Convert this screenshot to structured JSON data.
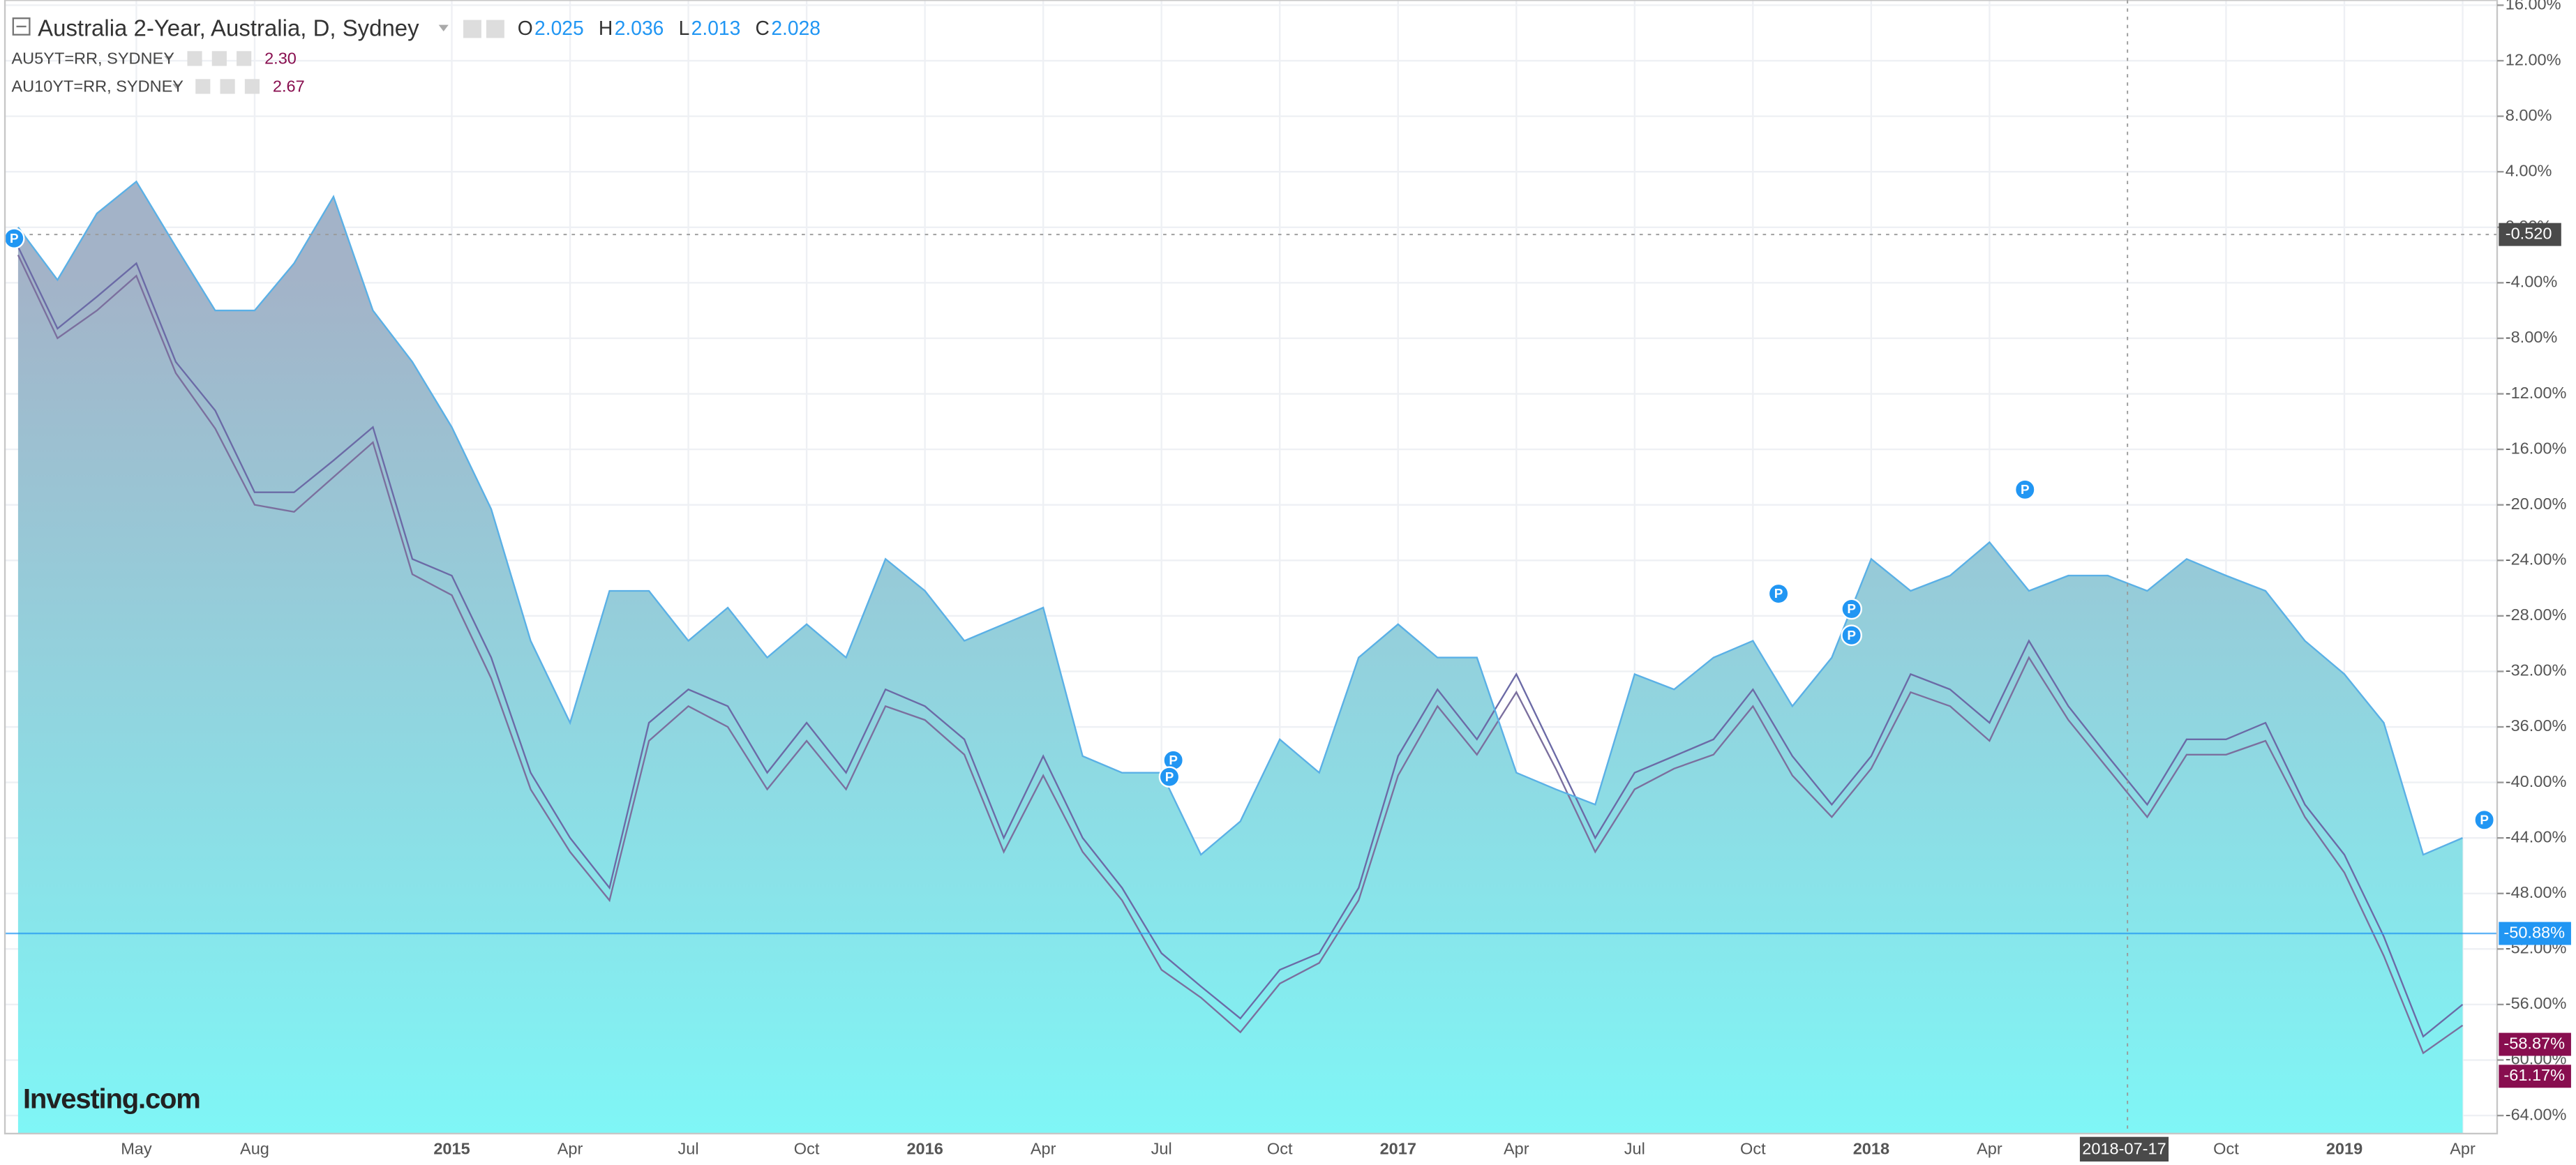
{
  "chart_data": {
    "type": "area",
    "series": [
      {
        "name": "Australia 2-Year, Australia, D, Sydney",
        "color": "#5ab0e6",
        "fill_top": "#a3b3c8",
        "fill_bottom": "#7ff6f6",
        "ohlc": [
          {
            "label": "O",
            "value": "2.025"
          },
          {
            "label": "H",
            "value": "2.036"
          },
          {
            "label": "L",
            "value": "2.013"
          },
          {
            "label": "C",
            "value": "2.028"
          }
        ],
        "values": [
          0,
          -3.8,
          1,
          3.3,
          -1.4,
          -6,
          -6,
          -2.6,
          2.2,
          -6,
          -9.7,
          -14.4,
          -20.3,
          -29.8,
          -35.7,
          -26.2,
          -26.2,
          -29.8,
          -27.4,
          -31,
          -28.6,
          -31,
          -23.9,
          -26.2,
          -29.8,
          -28.6,
          -27.4,
          -38.1,
          -39.3,
          -39.3,
          -45.2,
          -42.8,
          -36.9,
          -39.3,
          -31,
          -28.6,
          -31,
          -31,
          -39.3,
          -40.5,
          -41.6,
          -32.2,
          -33.3,
          -31,
          -29.8,
          -34.5,
          -31,
          -23.9,
          -26.2,
          -25.1,
          -22.7,
          -26.2,
          -25.1,
          -25.1,
          -26.2,
          -23.9,
          -25.1,
          -26.2,
          -29.8,
          -32.2,
          -35.7,
          -45.2,
          -44
        ]
      },
      {
        "name": "AU5YT=RR, SYDNEY",
        "color": "#6b6aa6",
        "legend_value": "2.30",
        "values": [
          -1.4,
          -7.3,
          -5,
          -2.6,
          -9.7,
          -13.2,
          -19.1,
          -19.1,
          -16.8,
          -14.4,
          -23.9,
          -25.1,
          -31,
          -39.3,
          -44,
          -47.6,
          -35.7,
          -33.3,
          -34.5,
          -39.3,
          -35.7,
          -39.3,
          -33.3,
          -34.5,
          -36.9,
          -44,
          -38.1,
          -44,
          -47.6,
          -52.3,
          -54.7,
          -57,
          -53.5,
          -52.3,
          -47.6,
          -38.1,
          -33.3,
          -36.9,
          -32.2,
          -38.1,
          -44,
          -39.3,
          -38.1,
          -36.9,
          -33.3,
          -38.1,
          -41.6,
          -38.1,
          -32.2,
          -33.3,
          -35.7,
          -29.8,
          -34.5,
          -38.1,
          -41.6,
          -36.9,
          -36.9,
          -35.7,
          -41.6,
          -45.2,
          -51.1,
          -58.3,
          -56
        ]
      },
      {
        "name": "AU10YT=RR, SYDNEY",
        "color": "#7b6f9e",
        "legend_value": "2.67",
        "values": [
          -2,
          -8,
          -6,
          -3.5,
          -10.5,
          -14.5,
          -20,
          -20.5,
          -18,
          -15.5,
          -25,
          -26.5,
          -32.5,
          -40.5,
          -45,
          -48.5,
          -37,
          -34.5,
          -36,
          -40.5,
          -37,
          -40.5,
          -34.5,
          -35.5,
          -38,
          -45,
          -39.5,
          -45,
          -48.5,
          -53.5,
          -55.5,
          -58,
          -54.5,
          -53,
          -48.5,
          -39.5,
          -34.5,
          -38,
          -33.5,
          -39,
          -45,
          -40.5,
          -39,
          -38,
          -34.5,
          -39.5,
          -42.5,
          -39,
          -33.5,
          -34.5,
          -37,
          -31,
          -35.5,
          -39,
          -42.5,
          -38,
          -38,
          -37,
          -42.5,
          -46.5,
          -52.5,
          -59.5,
          -57.5
        ]
      }
    ],
    "categories": [
      null,
      null,
      null,
      "May",
      null,
      null,
      "Aug",
      null,
      null,
      null,
      null,
      "2015",
      null,
      null,
      "Apr",
      null,
      null,
      "Jul",
      null,
      null,
      "Oct",
      null,
      null,
      "2016",
      null,
      null,
      "Apr",
      null,
      null,
      "Jul",
      null,
      null,
      "Oct",
      null,
      null,
      "2017",
      null,
      null,
      "Apr",
      null,
      null,
      "Jul",
      null,
      null,
      "Oct",
      null,
      null,
      "2018",
      null,
      null,
      "Apr",
      null,
      null,
      null,
      null,
      null,
      "Oct",
      null,
      null,
      "2019",
      null,
      null,
      "Apr"
    ],
    "ylim": [
      -65.3,
      16.36
    ],
    "yticks": [
      {
        "value": 16,
        "label": "16.00%"
      },
      {
        "value": 12,
        "label": "12.00%"
      },
      {
        "value": 8,
        "label": "8.00%"
      },
      {
        "value": 4,
        "label": "4.00%"
      },
      {
        "value": 0,
        "label": "0.00%"
      },
      {
        "value": -4,
        "label": "-4.00%"
      },
      {
        "value": -8,
        "label": "-8.00%"
      },
      {
        "value": -12,
        "label": "-12.00%"
      },
      {
        "value": -16,
        "label": "-16.00%"
      },
      {
        "value": -20,
        "label": "-20.00%"
      },
      {
        "value": -24,
        "label": "-24.00%"
      },
      {
        "value": -28,
        "label": "-28.00%"
      },
      {
        "value": -32,
        "label": "-32.00%"
      },
      {
        "value": -36,
        "label": "-36.00%"
      },
      {
        "value": -40,
        "label": "-40.00%"
      },
      {
        "value": -44,
        "label": "-44.00%"
      },
      {
        "value": -48,
        "label": "-48.00%"
      },
      {
        "value": -52,
        "label": "-52.00%"
      },
      {
        "value": -56,
        "label": "-56.00%"
      },
      {
        "value": -60,
        "label": "-60.00%"
      },
      {
        "value": -64,
        "label": "-64.00%"
      }
    ],
    "grid": true,
    "price_labels": [
      {
        "value": -50.88,
        "label": "-50.88%",
        "color": "#2196f3",
        "line": true
      },
      {
        "value": -58.87,
        "label": "-58.87%",
        "color": "#880e4f"
      },
      {
        "value": -61.17,
        "label": "-61.17%",
        "color": "#880e4f"
      }
    ],
    "crosshair": {
      "x_label": "2018-07-17",
      "y": {
        "value": -0.52,
        "label": "-0.520"
      }
    },
    "markers": [
      {
        "label": "P",
        "x": -0.1,
        "y": -0.8
      },
      {
        "label": "P",
        "x": 29.3,
        "y": -38.4
      },
      {
        "label": "P",
        "x": 29.2,
        "y": -39.6
      },
      {
        "label": "P",
        "x": 44.65,
        "y": -26.4
      },
      {
        "label": "P",
        "x": 46.5,
        "y": -27.5
      },
      {
        "label": "P",
        "x": 46.5,
        "y": -29.4
      },
      {
        "label": "P",
        "x": 50.9,
        "y": -18.9
      },
      {
        "label": "P",
        "x": 62.55,
        "y": -42.7
      }
    ],
    "logo": "Investing.com"
  }
}
